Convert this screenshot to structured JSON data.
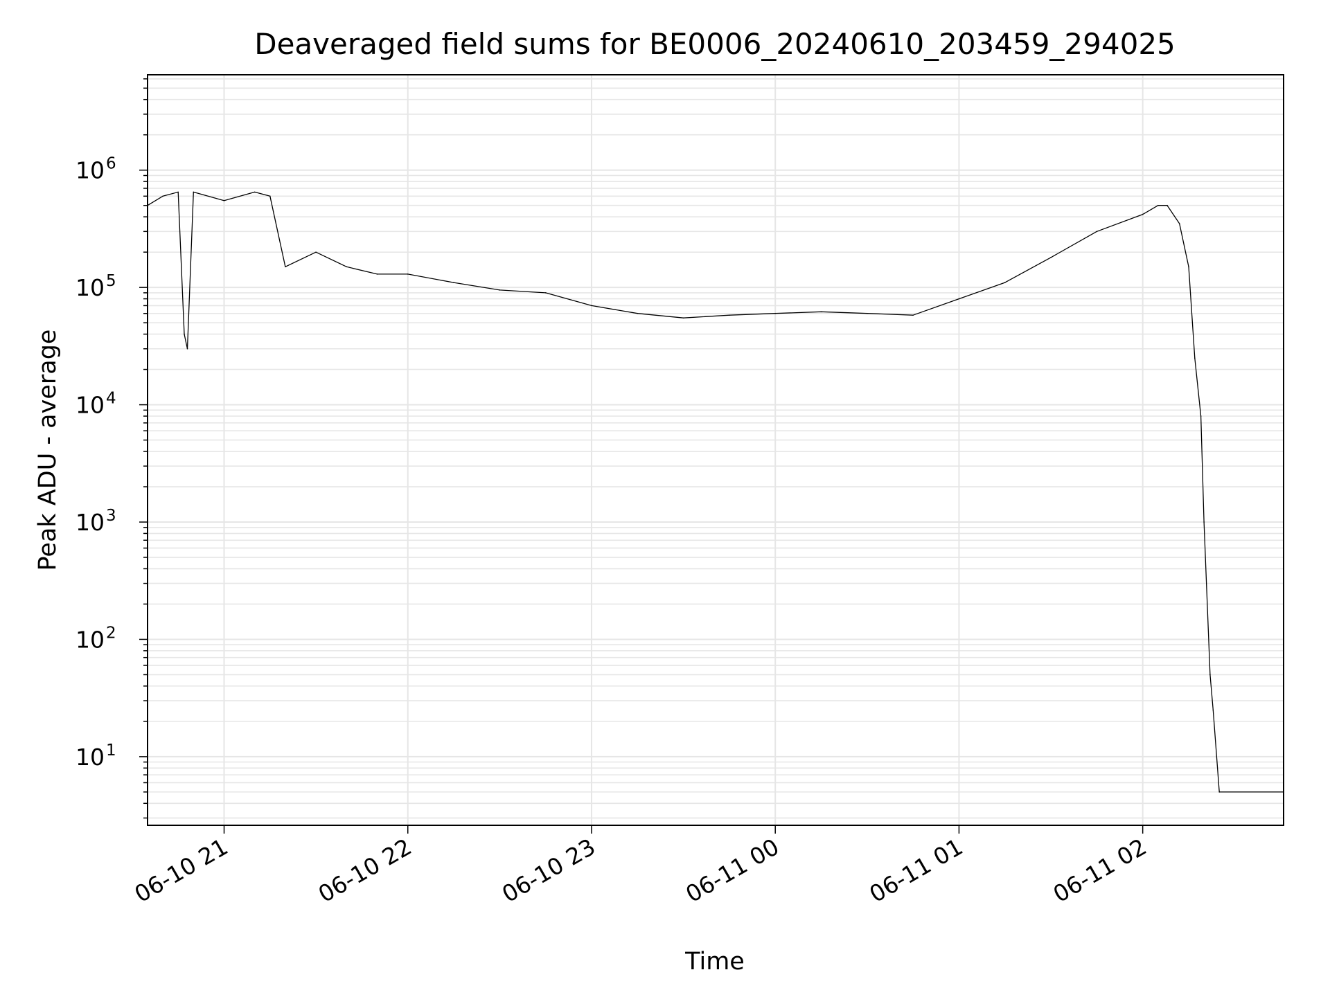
{
  "chart_data": {
    "type": "line",
    "title": "Deaveraged field sums for BE0006_20240610_203459_294025",
    "xlabel": "Time",
    "ylabel": "Peak ADU - average",
    "yscale": "log",
    "ylim": [
      2.6,
      6500000
    ],
    "xlim": [
      "06-10 20:35",
      "06-11 02:46"
    ],
    "grid": true,
    "x_ticks": [
      "06-10 21",
      "06-10 22",
      "06-10 23",
      "06-11 00",
      "06-11 01",
      "06-11 02"
    ],
    "y_ticks": [
      {
        "base": "10",
        "exp": "1",
        "value": 10
      },
      {
        "base": "10",
        "exp": "2",
        "value": 100
      },
      {
        "base": "10",
        "exp": "3",
        "value": 1000
      },
      {
        "base": "10",
        "exp": "4",
        "value": 10000
      },
      {
        "base": "10",
        "exp": "5",
        "value": 100000
      },
      {
        "base": "10",
        "exp": "6",
        "value": 1000000
      }
    ],
    "series": [
      {
        "color": "#000000",
        "points": [
          [
            "06-10 20:35",
            500000
          ],
          [
            "06-10 20:40",
            600000
          ],
          [
            "06-10 20:45",
            650000
          ],
          [
            "06-10 20:47",
            40000
          ],
          [
            "06-10 20:48",
            30000
          ],
          [
            "06-10 20:50",
            650000
          ],
          [
            "06-10 21:00",
            550000
          ],
          [
            "06-10 21:10",
            650000
          ],
          [
            "06-10 21:15",
            600000
          ],
          [
            "06-10 21:20",
            150000
          ],
          [
            "06-10 21:30",
            200000
          ],
          [
            "06-10 21:40",
            150000
          ],
          [
            "06-10 21:50",
            130000
          ],
          [
            "06-10 22:00",
            130000
          ],
          [
            "06-10 22:15",
            110000
          ],
          [
            "06-10 22:30",
            95000
          ],
          [
            "06-10 22:45",
            90000
          ],
          [
            "06-10 23:00",
            70000
          ],
          [
            "06-10 23:15",
            60000
          ],
          [
            "06-10 23:30",
            55000
          ],
          [
            "06-10 23:45",
            58000
          ],
          [
            "06-11 00:00",
            60000
          ],
          [
            "06-11 00:15",
            62000
          ],
          [
            "06-11 00:30",
            60000
          ],
          [
            "06-11 00:45",
            58000
          ],
          [
            "06-11 01:00",
            80000
          ],
          [
            "06-11 01:15",
            110000
          ],
          [
            "06-11 01:30",
            180000
          ],
          [
            "06-11 01:45",
            300000
          ],
          [
            "06-11 02:00",
            420000
          ],
          [
            "06-11 02:05",
            500000
          ],
          [
            "06-11 02:08",
            500000
          ],
          [
            "06-11 02:12",
            350000
          ],
          [
            "06-11 02:15",
            150000
          ],
          [
            "06-11 02:17",
            25000
          ],
          [
            "06-11 02:19",
            8000
          ],
          [
            "06-11 02:20",
            1000
          ],
          [
            "06-11 02:22",
            50
          ],
          [
            "06-11 02:23",
            25
          ],
          [
            "06-11 02:25",
            5
          ],
          [
            "06-11 02:46",
            5
          ]
        ]
      }
    ]
  }
}
